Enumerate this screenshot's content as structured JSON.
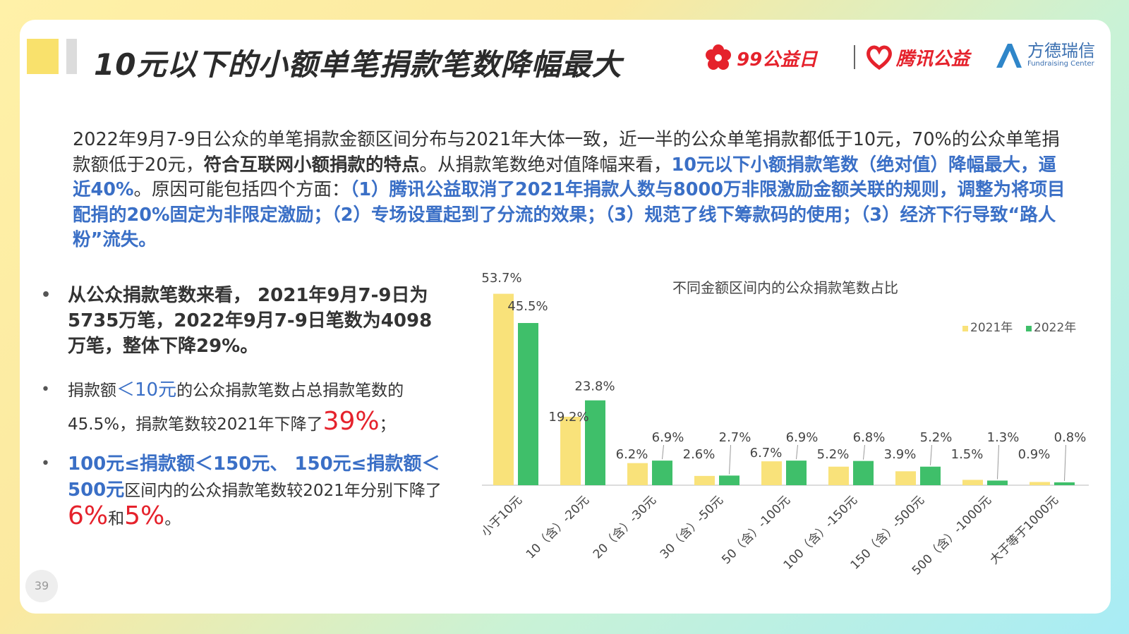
{
  "header": {
    "title": "10元以下的小额单笔捐款笔数降幅最大",
    "logos": {
      "logo1_text": "99公益日",
      "logo2_text": "腾讯公益",
      "logo3_cn": "方德瑞信",
      "logo3_en": "Fundraising Center"
    }
  },
  "intro": {
    "p1": "2022年9月7-9日公众的单笔捐款金额区间分布与2021年大体一致，近一半的公众单笔捐款都低于10元，70%的公众单笔捐款额低于20元，",
    "p2": "符合互联网小额捐款的特点",
    "p3": "。从捐款笔数绝对值降幅来看，",
    "p4": "10元以下小额捐款笔数（绝对值）降幅最大，逼近40%",
    "p5": "。原因可能包括四个方面：",
    "p6": "（1）腾讯公益取消了2021年捐款人数与8000万非限激励金额关联的规则，调整为将项目配捐的20%固定为非限定激励；（2）专场设置起到了分流的效果；（3）规范了线下筹款码的使用；（3）经济下行导致“路人粉”流失。"
  },
  "bullets": {
    "dot": "•",
    "b1": "从公众捐款笔数来看， 2021年9月7-9日为5735万笔，2022年9月7-9日笔数为4098万笔，整体下降29%。",
    "b2_a": "捐款额",
    "b2_b": "＜10元",
    "b2_c": "的公众捐款笔数占总捐款笔数的45.5%，捐款笔数较2021年下降了",
    "b2_d": "39%",
    "b2_e": "；",
    "b3_a": "100元≤捐款额＜150元、 150元≤捐款额＜500元",
    "b3_b": "区间内的公众捐款笔数较2021年分别下降了",
    "b3_c": "6%",
    "b3_d": "和",
    "b3_e": "5%",
    "b3_f": "。"
  },
  "page_number": "39",
  "chart_data": {
    "type": "bar",
    "title": "不同金额区间内的公众捐款笔数占比",
    "categories": [
      "小于10元",
      "10（含）-20元",
      "20（含）-30元",
      "30（含）-50元",
      "50（含）-100元",
      "100（含）-150元",
      "150（含）-500元",
      "500（含）-1000元",
      "大于等于1000元"
    ],
    "series": [
      {
        "name": "2021年",
        "values": [
          53.7,
          19.2,
          6.2,
          2.6,
          6.7,
          5.2,
          3.9,
          1.5,
          0.9
        ],
        "labels": [
          "53.7%",
          "19.2%",
          "6.2%",
          "2.6%",
          "6.7%",
          "5.2%",
          "3.9%",
          "1.5%",
          "0.9%"
        ],
        "color": "#f9e27a"
      },
      {
        "name": "2022年",
        "values": [
          45.5,
          23.8,
          6.9,
          2.7,
          6.9,
          6.8,
          5.2,
          1.3,
          0.8
        ],
        "labels": [
          "45.5%",
          "23.8%",
          "6.9%",
          "2.7%",
          "6.9%",
          "6.8%",
          "5.2%",
          "1.3%",
          "0.8%"
        ],
        "color": "#3fbf6a"
      }
    ],
    "ylim": [
      0,
      55
    ],
    "legend_position": "top-right",
    "grid": false
  }
}
